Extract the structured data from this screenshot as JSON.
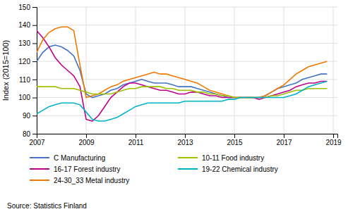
{
  "chart_data": {
    "type": "line",
    "ylabel": "Index (2015=100)",
    "source": "Source: Statistics Finland",
    "xlim": [
      2007.0,
      2019.17
    ],
    "ylim": [
      80,
      150
    ],
    "xticks": [
      2007,
      2009,
      2011,
      2013,
      2015,
      2017,
      2019
    ],
    "yticks": [
      80,
      90,
      100,
      110,
      120,
      130,
      140,
      150
    ],
    "grid": true,
    "legend": "bottom",
    "x": [
      2007.0,
      2007.25,
      2007.5,
      2007.75,
      2008.0,
      2008.25,
      2008.5,
      2008.75,
      2009.0,
      2009.25,
      2009.5,
      2009.75,
      2010.0,
      2010.25,
      2010.5,
      2010.75,
      2011.0,
      2011.25,
      2011.5,
      2011.75,
      2012.0,
      2012.25,
      2012.5,
      2012.75,
      2013.0,
      2013.25,
      2013.5,
      2013.75,
      2014.0,
      2014.25,
      2014.5,
      2014.75,
      2015.0,
      2015.25,
      2015.5,
      2015.75,
      2016.0,
      2016.25,
      2016.5,
      2016.75,
      2017.0,
      2017.25,
      2017.5,
      2017.75,
      2018.0,
      2018.25,
      2018.5,
      2018.75
    ],
    "series": [
      {
        "name": "C Manufacturing",
        "color": "#4472c4",
        "values": [
          120,
          125,
          128,
          129,
          128,
          126,
          123,
          115,
          102,
          100,
          101,
          102,
          104,
          105,
          107,
          108,
          109,
          110,
          109,
          108,
          108,
          108,
          107,
          106,
          106,
          106,
          105,
          104,
          103,
          102,
          101,
          100,
          100,
          100,
          100,
          100,
          100,
          101,
          103,
          105,
          106,
          107,
          108,
          110,
          111,
          112,
          113,
          113
        ]
      },
      {
        "name": "16-17 Forest industry",
        "color": "#c0008b",
        "values": [
          137,
          133,
          128,
          122,
          118,
          115,
          112,
          106,
          88,
          87,
          90,
          95,
          100,
          103,
          106,
          108,
          108,
          107,
          106,
          105,
          104,
          104,
          103,
          102,
          102,
          103,
          103,
          102,
          101,
          101,
          100,
          100,
          100,
          100,
          100,
          100,
          99,
          100,
          101,
          102,
          103,
          104,
          106,
          107,
          108,
          108,
          109,
          109
        ]
      },
      {
        "name": "24-30_33 Metal industry",
        "color": "#f07800",
        "values": [
          125,
          132,
          136,
          138,
          139,
          139,
          137,
          118,
          100,
          101,
          102,
          104,
          106,
          107,
          109,
          110,
          111,
          112,
          113,
          114,
          113,
          113,
          112,
          111,
          110,
          109,
          108,
          106,
          104,
          103,
          102,
          101,
          100,
          100,
          100,
          100,
          100,
          101,
          103,
          105,
          107,
          110,
          113,
          115,
          117,
          118,
          119,
          120
        ]
      },
      {
        "name": "10-11 Food industry",
        "color": "#9dc000",
        "values": [
          106,
          106,
          106,
          106,
          105,
          105,
          105,
          104,
          103,
          102,
          102,
          102,
          102,
          103,
          104,
          105,
          105,
          106,
          106,
          106,
          106,
          105,
          105,
          104,
          104,
          104,
          103,
          103,
          102,
          102,
          101,
          101,
          100,
          100,
          100,
          100,
          100,
          100,
          101,
          101,
          102,
          103,
          104,
          104,
          105,
          105,
          105,
          105
        ]
      },
      {
        "name": "19-22 Chemical industry",
        "color": "#00b4c8",
        "values": [
          91,
          93,
          95,
          96,
          97,
          97,
          97,
          96,
          92,
          88,
          87,
          87,
          88,
          89,
          91,
          93,
          95,
          96,
          97,
          97,
          97,
          97,
          97,
          97,
          98,
          98,
          98,
          98,
          98,
          98,
          98,
          99,
          99,
          100,
          100,
          100,
          100,
          100,
          100,
          100,
          100,
          101,
          102,
          104,
          106,
          107,
          108,
          109
        ]
      }
    ]
  }
}
